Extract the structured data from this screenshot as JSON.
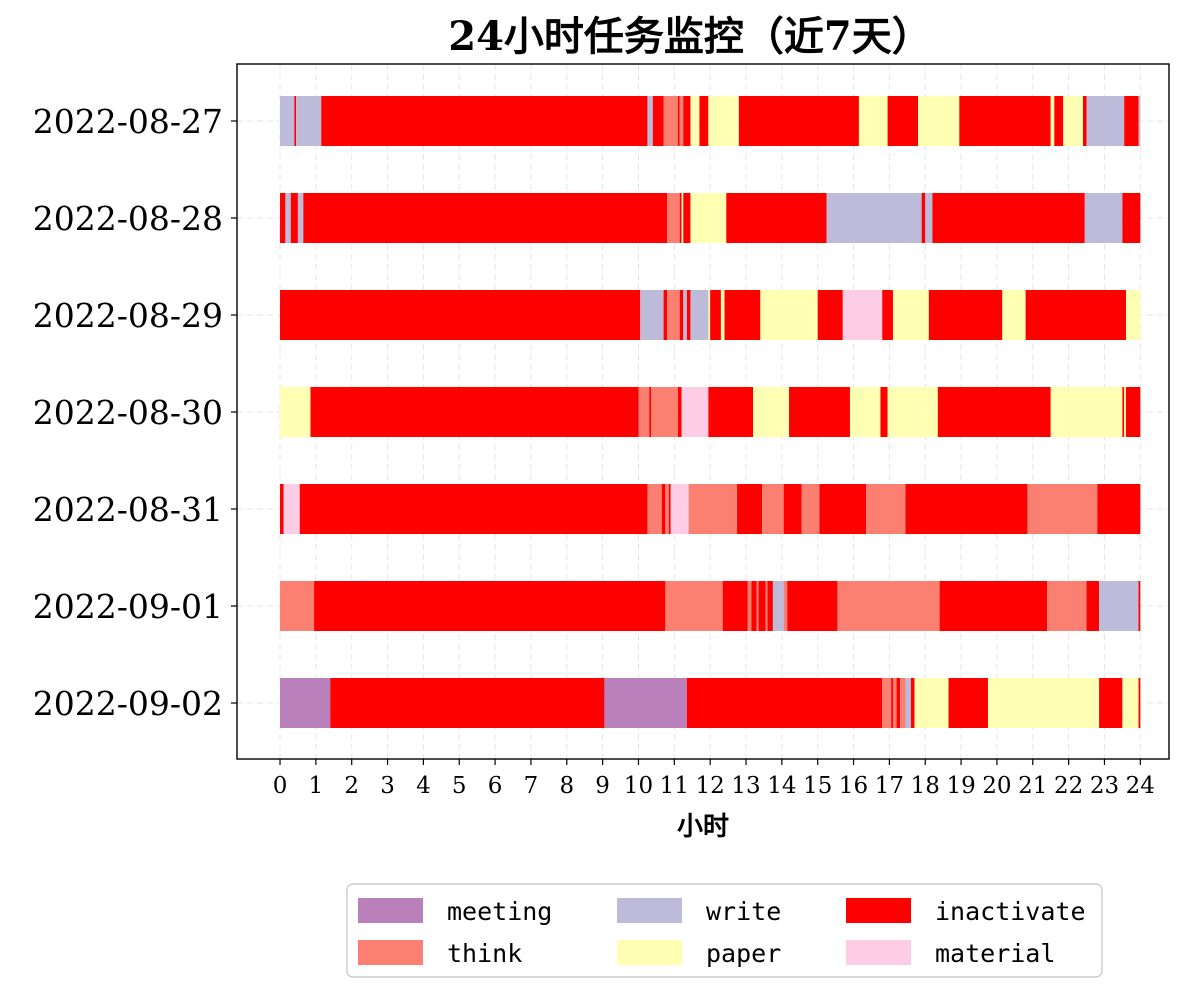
{
  "chart_data": {
    "type": "bar",
    "orientation": "horizontal-stacked-timeline",
    "title": "24小时任务监控（近7天）",
    "xlabel": "小时",
    "ylabel": "",
    "xlim": [
      -1.2,
      24.8
    ],
    "xticks": [
      "0",
      "1",
      "2",
      "3",
      "4",
      "5",
      "6",
      "7",
      "8",
      "9",
      "10",
      "11",
      "12",
      "13",
      "14",
      "15",
      "16",
      "17",
      "18",
      "19",
      "20",
      "21",
      "22",
      "23",
      "24"
    ],
    "grid": true,
    "legend": {
      "placement": "bottom-center",
      "entries": [
        {
          "key": "meeting",
          "label": "meeting"
        },
        {
          "key": "write",
          "label": "write"
        },
        {
          "key": "inactivate",
          "label": "inactivate"
        },
        {
          "key": "think",
          "label": "think"
        },
        {
          "key": "paper",
          "label": "paper"
        },
        {
          "key": "material",
          "label": "material"
        }
      ]
    },
    "colors": {
      "meeting": "#BA80BB",
      "think": "#FB8072",
      "write": "#BEBADA",
      "paper": "#FFFFB3",
      "inactivate": "#FF0000",
      "material": "#FCCDE5"
    },
    "categories": [
      "2022-08-27",
      "2022-08-28",
      "2022-08-29",
      "2022-08-30",
      "2022-08-31",
      "2022-09-01",
      "2022-09-02"
    ],
    "series": [
      {
        "date": "2022-08-27",
        "segments": [
          [
            "write",
            0,
            0.4
          ],
          [
            "inactivate",
            0.4,
            0.45
          ],
          [
            "write",
            0.45,
            1.15
          ],
          [
            "inactivate",
            1.15,
            10.25
          ],
          [
            "write",
            10.25,
            10.4
          ],
          [
            "inactivate",
            10.4,
            10.7
          ],
          [
            "think",
            10.7,
            11.1
          ],
          [
            "inactivate",
            11.1,
            11.15
          ],
          [
            "think",
            11.15,
            11.25
          ],
          [
            "inactivate",
            11.25,
            11.45
          ],
          [
            "paper",
            11.45,
            11.7
          ],
          [
            "inactivate",
            11.7,
            11.95
          ],
          [
            "paper",
            11.95,
            12.8
          ],
          [
            "inactivate",
            12.8,
            16.15
          ],
          [
            "paper",
            16.15,
            16.95
          ],
          [
            "inactivate",
            16.95,
            17.8
          ],
          [
            "paper",
            17.8,
            18.95
          ],
          [
            "inactivate",
            18.95,
            21.5
          ],
          [
            "paper",
            21.5,
            21.6
          ],
          [
            "inactivate",
            21.6,
            21.85
          ],
          [
            "paper",
            21.85,
            22.4
          ],
          [
            "inactivate",
            22.4,
            22.5
          ],
          [
            "write",
            22.5,
            23.55
          ],
          [
            "inactivate",
            23.55,
            23.95
          ],
          [
            "write",
            23.95,
            24.0
          ]
        ]
      },
      {
        "date": "2022-08-28",
        "segments": [
          [
            "inactivate",
            0,
            0.15
          ],
          [
            "write",
            0.15,
            0.3
          ],
          [
            "inactivate",
            0.3,
            0.5
          ],
          [
            "write",
            0.5,
            0.65
          ],
          [
            "inactivate",
            0.65,
            10.8
          ],
          [
            "think",
            10.8,
            11.15
          ],
          [
            "inactivate",
            11.15,
            11.2
          ],
          [
            "paper",
            11.2,
            11.25
          ],
          [
            "inactivate",
            11.25,
            11.45
          ],
          [
            "paper",
            11.45,
            12.45
          ],
          [
            "inactivate",
            12.45,
            15.25
          ],
          [
            "write",
            15.25,
            17.9
          ],
          [
            "inactivate",
            17.9,
            18.0
          ],
          [
            "write",
            18.0,
            18.2
          ],
          [
            "inactivate",
            18.2,
            22.45
          ],
          [
            "write",
            22.45,
            23.5
          ],
          [
            "inactivate",
            23.5,
            24.0
          ]
        ]
      },
      {
        "date": "2022-08-29",
        "segments": [
          [
            "inactivate",
            0,
            10.05
          ],
          [
            "write",
            10.05,
            10.7
          ],
          [
            "inactivate",
            10.7,
            10.8
          ],
          [
            "think",
            10.8,
            11.15
          ],
          [
            "inactivate",
            11.15,
            11.25
          ],
          [
            "write",
            11.25,
            11.35
          ],
          [
            "inactivate",
            11.35,
            11.45
          ],
          [
            "write",
            11.45,
            11.95
          ],
          [
            "paper",
            11.95,
            12.0
          ],
          [
            "inactivate",
            12.0,
            12.3
          ],
          [
            "paper",
            12.3,
            12.4
          ],
          [
            "inactivate",
            12.4,
            13.4
          ],
          [
            "paper",
            13.4,
            15.0
          ],
          [
            "inactivate",
            15.0,
            15.7
          ],
          [
            "material",
            15.7,
            16.8
          ],
          [
            "inactivate",
            16.8,
            17.1
          ],
          [
            "paper",
            17.1,
            18.1
          ],
          [
            "inactivate",
            18.1,
            20.15
          ],
          [
            "paper",
            20.15,
            20.8
          ],
          [
            "inactivate",
            20.8,
            23.6
          ],
          [
            "paper",
            23.6,
            24.0
          ]
        ]
      },
      {
        "date": "2022-08-30",
        "segments": [
          [
            "paper",
            0,
            0.85
          ],
          [
            "inactivate",
            0.85,
            10.0
          ],
          [
            "think",
            10.0,
            10.3
          ],
          [
            "inactivate",
            10.3,
            10.35
          ],
          [
            "think",
            10.35,
            11.1
          ],
          [
            "inactivate",
            11.1,
            11.2
          ],
          [
            "material",
            11.2,
            11.95
          ],
          [
            "inactivate",
            11.95,
            13.2
          ],
          [
            "paper",
            13.2,
            14.2
          ],
          [
            "inactivate",
            14.2,
            15.9
          ],
          [
            "paper",
            15.9,
            16.75
          ],
          [
            "inactivate",
            16.75,
            16.95
          ],
          [
            "paper",
            16.95,
            18.35
          ],
          [
            "inactivate",
            18.35,
            21.5
          ],
          [
            "paper",
            21.5,
            23.5
          ],
          [
            "inactivate",
            23.5,
            23.55
          ],
          [
            "paper",
            23.55,
            23.6
          ],
          [
            "inactivate",
            23.6,
            24.0
          ]
        ]
      },
      {
        "date": "2022-08-31",
        "segments": [
          [
            "inactivate",
            0,
            0.1
          ],
          [
            "material",
            0.1,
            0.55
          ],
          [
            "inactivate",
            0.55,
            10.25
          ],
          [
            "think",
            10.25,
            10.65
          ],
          [
            "inactivate",
            10.65,
            10.75
          ],
          [
            "think",
            10.75,
            10.85
          ],
          [
            "inactivate",
            10.85,
            10.9
          ],
          [
            "material",
            10.9,
            11.4
          ],
          [
            "think",
            11.4,
            12.75
          ],
          [
            "inactivate",
            12.75,
            13.45
          ],
          [
            "think",
            13.45,
            14.05
          ],
          [
            "inactivate",
            14.05,
            14.55
          ],
          [
            "think",
            14.55,
            15.05
          ],
          [
            "inactivate",
            15.05,
            16.35
          ],
          [
            "think",
            16.35,
            17.45
          ],
          [
            "inactivate",
            17.45,
            20.85
          ],
          [
            "think",
            20.85,
            22.8
          ],
          [
            "inactivate",
            22.8,
            24.0
          ]
        ]
      },
      {
        "date": "2022-09-01",
        "segments": [
          [
            "think",
            0,
            0.95
          ],
          [
            "inactivate",
            0.95,
            10.75
          ],
          [
            "think",
            10.75,
            12.35
          ],
          [
            "inactivate",
            12.35,
            13.05
          ],
          [
            "think",
            13.05,
            13.15
          ],
          [
            "inactivate",
            13.15,
            13.3
          ],
          [
            "think",
            13.3,
            13.35
          ],
          [
            "inactivate",
            13.35,
            13.55
          ],
          [
            "think",
            13.55,
            13.6
          ],
          [
            "inactivate",
            13.6,
            13.75
          ],
          [
            "write",
            13.75,
            14.05
          ],
          [
            "think",
            14.05,
            14.15
          ],
          [
            "inactivate",
            14.15,
            15.55
          ],
          [
            "think",
            15.55,
            18.4
          ],
          [
            "inactivate",
            18.4,
            21.4
          ],
          [
            "think",
            21.4,
            22.5
          ],
          [
            "inactivate",
            22.5,
            22.85
          ],
          [
            "write",
            22.85,
            23.95
          ],
          [
            "inactivate",
            23.95,
            24.0
          ]
        ]
      },
      {
        "date": "2022-09-02",
        "segments": [
          [
            "meeting",
            0,
            1.4
          ],
          [
            "inactivate",
            1.4,
            9.05
          ],
          [
            "meeting",
            9.05,
            11.35
          ],
          [
            "inactivate",
            11.35,
            16.8
          ],
          [
            "think",
            16.8,
            17.05
          ],
          [
            "inactivate",
            17.05,
            17.1
          ],
          [
            "think",
            17.1,
            17.2
          ],
          [
            "inactivate",
            17.2,
            17.3
          ],
          [
            "think",
            17.3,
            17.45
          ],
          [
            "write",
            17.45,
            17.6
          ],
          [
            "inactivate",
            17.6,
            17.7
          ],
          [
            "paper",
            17.7,
            18.65
          ],
          [
            "inactivate",
            18.65,
            19.75
          ],
          [
            "paper",
            19.75,
            22.85
          ],
          [
            "inactivate",
            22.85,
            23.5
          ],
          [
            "paper",
            23.5,
            23.95
          ],
          [
            "inactivate",
            23.95,
            24.0
          ]
        ]
      }
    ]
  }
}
